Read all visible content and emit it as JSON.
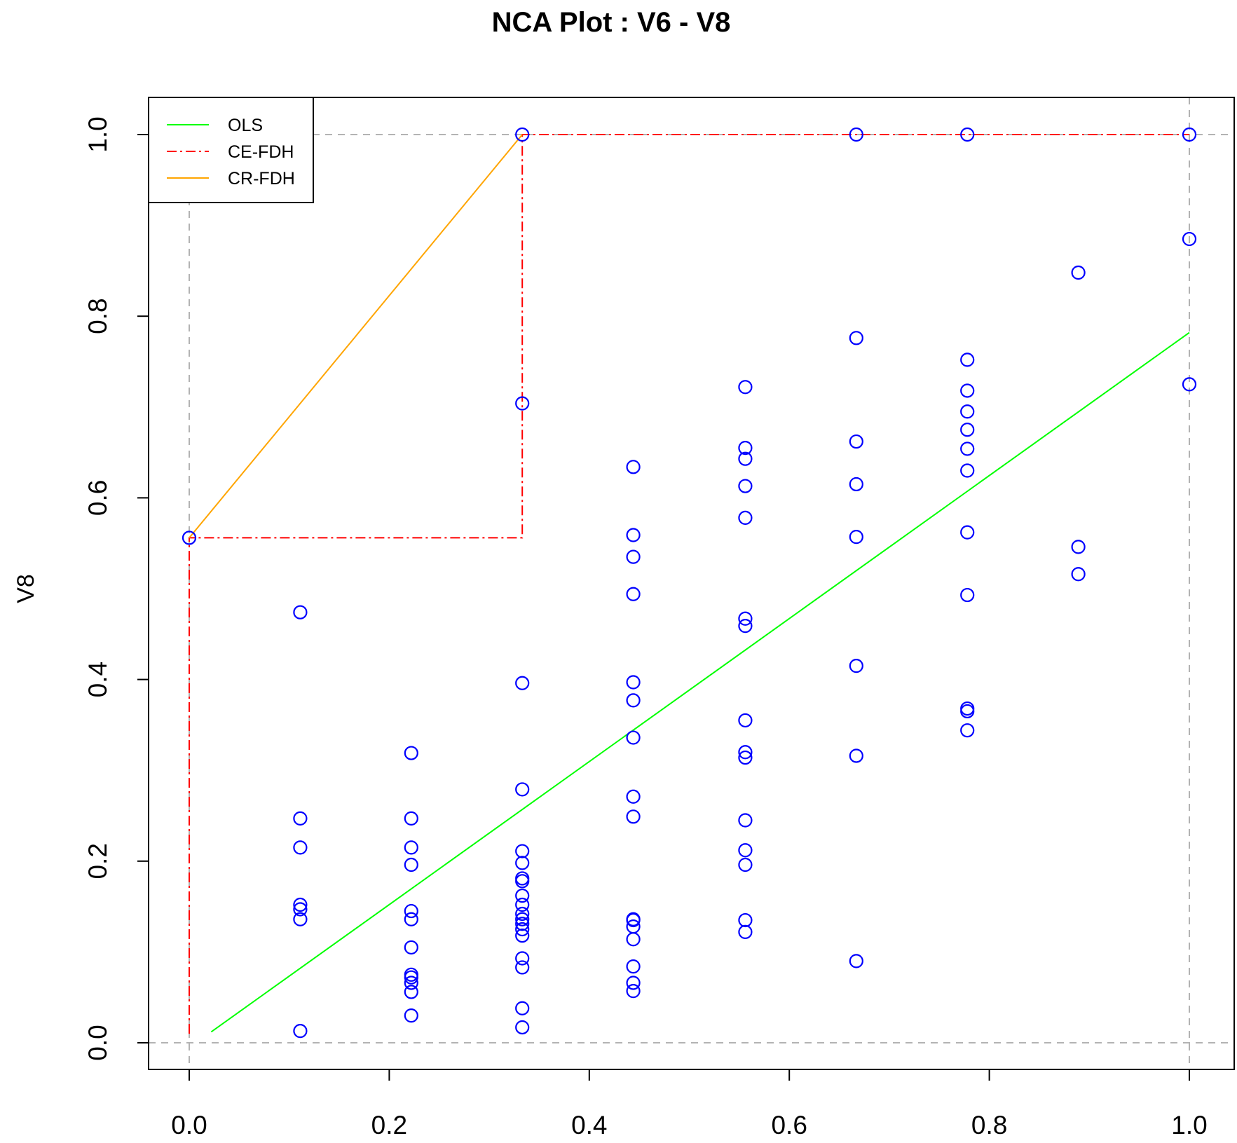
{
  "chart_data": {
    "type": "scatter",
    "title": "NCA Plot : V6 - V8",
    "xlabel": "",
    "ylabel": "V8",
    "xlim": [
      -0.04,
      1.04
    ],
    "ylim": [
      -0.02,
      1.04
    ],
    "xticks": [
      0.0,
      0.2,
      0.4,
      0.6,
      0.8,
      1.0
    ],
    "yticks": [
      0.0,
      0.2,
      0.4,
      0.6,
      0.8,
      1.0
    ],
    "xtick_labels": [
      "0.0",
      "0.2",
      "0.4",
      "0.6",
      "0.8",
      "1.0"
    ],
    "ytick_labels": [
      "0.0",
      "0.2",
      "0.4",
      "0.6",
      "0.8",
      "1.0"
    ],
    "reference_lines": {
      "x": [
        0.0,
        1.0
      ],
      "y": [
        0.0,
        1.0
      ],
      "style": "dashed",
      "color": "#b3b3b3"
    },
    "points_color": "#0000ff",
    "points": [
      [
        0.0,
        0.556
      ],
      [
        0.111,
        0.474
      ],
      [
        0.111,
        0.247
      ],
      [
        0.111,
        0.215
      ],
      [
        0.111,
        0.152
      ],
      [
        0.111,
        0.147
      ],
      [
        0.111,
        0.136
      ],
      [
        0.111,
        0.013
      ],
      [
        0.222,
        0.319
      ],
      [
        0.222,
        0.247
      ],
      [
        0.222,
        0.215
      ],
      [
        0.222,
        0.196
      ],
      [
        0.222,
        0.145
      ],
      [
        0.222,
        0.136
      ],
      [
        0.222,
        0.105
      ],
      [
        0.222,
        0.075
      ],
      [
        0.222,
        0.072
      ],
      [
        0.222,
        0.066
      ],
      [
        0.222,
        0.056
      ],
      [
        0.222,
        0.03
      ],
      [
        0.333,
        1.0
      ],
      [
        0.333,
        0.704
      ],
      [
        0.333,
        0.396
      ],
      [
        0.333,
        0.279
      ],
      [
        0.333,
        0.211
      ],
      [
        0.333,
        0.198
      ],
      [
        0.333,
        0.181
      ],
      [
        0.333,
        0.178
      ],
      [
        0.333,
        0.162
      ],
      [
        0.333,
        0.152
      ],
      [
        0.333,
        0.142
      ],
      [
        0.333,
        0.136
      ],
      [
        0.333,
        0.131
      ],
      [
        0.333,
        0.125
      ],
      [
        0.333,
        0.118
      ],
      [
        0.333,
        0.093
      ],
      [
        0.333,
        0.083
      ],
      [
        0.333,
        0.038
      ],
      [
        0.333,
        0.017
      ],
      [
        0.444,
        0.634
      ],
      [
        0.444,
        0.559
      ],
      [
        0.444,
        0.535
      ],
      [
        0.444,
        0.494
      ],
      [
        0.444,
        0.397
      ],
      [
        0.444,
        0.377
      ],
      [
        0.444,
        0.336
      ],
      [
        0.444,
        0.271
      ],
      [
        0.444,
        0.249
      ],
      [
        0.444,
        0.135
      ],
      [
        0.444,
        0.128
      ],
      [
        0.444,
        0.136
      ],
      [
        0.444,
        0.114
      ],
      [
        0.444,
        0.084
      ],
      [
        0.444,
        0.066
      ],
      [
        0.444,
        0.057
      ],
      [
        0.556,
        0.722
      ],
      [
        0.556,
        0.655
      ],
      [
        0.556,
        0.643
      ],
      [
        0.556,
        0.613
      ],
      [
        0.556,
        0.578
      ],
      [
        0.556,
        0.467
      ],
      [
        0.556,
        0.459
      ],
      [
        0.556,
        0.355
      ],
      [
        0.556,
        0.32
      ],
      [
        0.556,
        0.314
      ],
      [
        0.556,
        0.245
      ],
      [
        0.556,
        0.212
      ],
      [
        0.556,
        0.196
      ],
      [
        0.556,
        0.135
      ],
      [
        0.556,
        0.122
      ],
      [
        0.667,
        1.0
      ],
      [
        0.667,
        0.776
      ],
      [
        0.667,
        0.662
      ],
      [
        0.667,
        0.615
      ],
      [
        0.667,
        0.557
      ],
      [
        0.667,
        0.415
      ],
      [
        0.667,
        0.316
      ],
      [
        0.667,
        0.09
      ],
      [
        0.778,
        1.0
      ],
      [
        0.778,
        0.752
      ],
      [
        0.778,
        0.718
      ],
      [
        0.778,
        0.695
      ],
      [
        0.778,
        0.675
      ],
      [
        0.778,
        0.654
      ],
      [
        0.778,
        0.63
      ],
      [
        0.778,
        0.562
      ],
      [
        0.778,
        0.493
      ],
      [
        0.778,
        0.368
      ],
      [
        0.778,
        0.365
      ],
      [
        0.778,
        0.344
      ],
      [
        0.889,
        0.848
      ],
      [
        0.889,
        0.546
      ],
      [
        0.889,
        0.516
      ],
      [
        1.0,
        1.0
      ],
      [
        1.0,
        0.885
      ],
      [
        1.0,
        0.725
      ]
    ],
    "series": [
      {
        "name": "OLS",
        "style": "solid",
        "color": "#00ff00",
        "points": [
          [
            0.022,
            0.012
          ],
          [
            1.0,
            0.782
          ]
        ]
      },
      {
        "name": "CE-FDH",
        "style": "dashdot",
        "color": "#ff0000",
        "points": [
          [
            0.0,
            0.01
          ],
          [
            0.0,
            0.556
          ],
          [
            0.333,
            0.556
          ],
          [
            0.333,
            1.0
          ],
          [
            1.0,
            1.0
          ]
        ]
      },
      {
        "name": "CR-FDH",
        "style": "solid",
        "color": "#ffa500",
        "points": [
          [
            0.0,
            0.556
          ],
          [
            0.333,
            1.0
          ]
        ]
      }
    ],
    "legend": {
      "position": "top-left",
      "entries": [
        "OLS",
        "CE-FDH",
        "CR-FDH"
      ]
    }
  }
}
